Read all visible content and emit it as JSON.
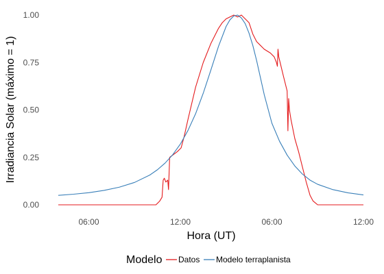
{
  "chart_data": {
    "type": "line",
    "xlabel": "Hora (UT)",
    "ylabel": "Irradiancia Solar (máximo = 1)",
    "xlim": [
      0,
      40
    ],
    "ylim": [
      0,
      1
    ],
    "x_ticks": [
      {
        "value": 4,
        "label": "06:00"
      },
      {
        "value": 16,
        "label": "12:00"
      },
      {
        "value": 28,
        "label": "06:00"
      },
      {
        "value": 40,
        "label": "12:00"
      }
    ],
    "y_ticks": [
      {
        "value": 0,
        "label": "0.00"
      },
      {
        "value": 0.25,
        "label": "0.25"
      },
      {
        "value": 0.5,
        "label": "0.50"
      },
      {
        "value": 0.75,
        "label": "0.75"
      },
      {
        "value": 1,
        "label": "1.00"
      }
    ],
    "grid": false,
    "legend": {
      "title": "Modelo",
      "position": "bottom"
    },
    "series": [
      {
        "name": "Datos",
        "color": "#e41a1c",
        "x": [
          0,
          8,
          12.8,
          13.3,
          13.6,
          13.75,
          13.9,
          14.1,
          14.35,
          14.45,
          14.6,
          15.6,
          16.1,
          16.3,
          16.5,
          17,
          18,
          19,
          20,
          21,
          21.5,
          22,
          22.5,
          23,
          23.5,
          24,
          24.5,
          25,
          25.5,
          26,
          26.5,
          27,
          27.8,
          28.3,
          28.6,
          28.72,
          28.8,
          28.9,
          29.5,
          30,
          30.1,
          30.2,
          30.3,
          30.5,
          31,
          31.5,
          32,
          32.5,
          33,
          33.4,
          33.7,
          34,
          36,
          40
        ],
        "y": [
          0,
          0,
          0,
          0.02,
          0.04,
          0.13,
          0.14,
          0.12,
          0.13,
          0.08,
          0.25,
          0.28,
          0.3,
          0.33,
          0.36,
          0.45,
          0.62,
          0.75,
          0.85,
          0.93,
          0.96,
          0.98,
          0.99,
          1.0,
          0.99,
          1.0,
          0.98,
          0.96,
          0.9,
          0.86,
          0.84,
          0.82,
          0.8,
          0.78,
          0.75,
          0.73,
          0.82,
          0.78,
          0.68,
          0.6,
          0.39,
          0.56,
          0.5,
          0.45,
          0.35,
          0.28,
          0.2,
          0.12,
          0.05,
          0.02,
          0.01,
          0,
          0,
          0
        ]
      },
      {
        "name": "Modelo terraplanista",
        "color": "#377eb8",
        "x": [
          0,
          2,
          4,
          6,
          8,
          10,
          12,
          13,
          14,
          15,
          16,
          17,
          18,
          19,
          20,
          21,
          22,
          22.5,
          23,
          23.5,
          24,
          24.5,
          25,
          25.5,
          26,
          27,
          28,
          29,
          30,
          31,
          32,
          33,
          34,
          36,
          38,
          40
        ],
        "y": [
          0.05,
          0.056,
          0.064,
          0.076,
          0.093,
          0.118,
          0.157,
          0.185,
          0.22,
          0.264,
          0.32,
          0.392,
          0.48,
          0.588,
          0.71,
          0.835,
          0.94,
          0.975,
          0.995,
          1.0,
          0.985,
          0.955,
          0.905,
          0.84,
          0.76,
          0.58,
          0.43,
          0.335,
          0.262,
          0.205,
          0.162,
          0.13,
          0.108,
          0.08,
          0.063,
          0.052
        ]
      }
    ]
  }
}
